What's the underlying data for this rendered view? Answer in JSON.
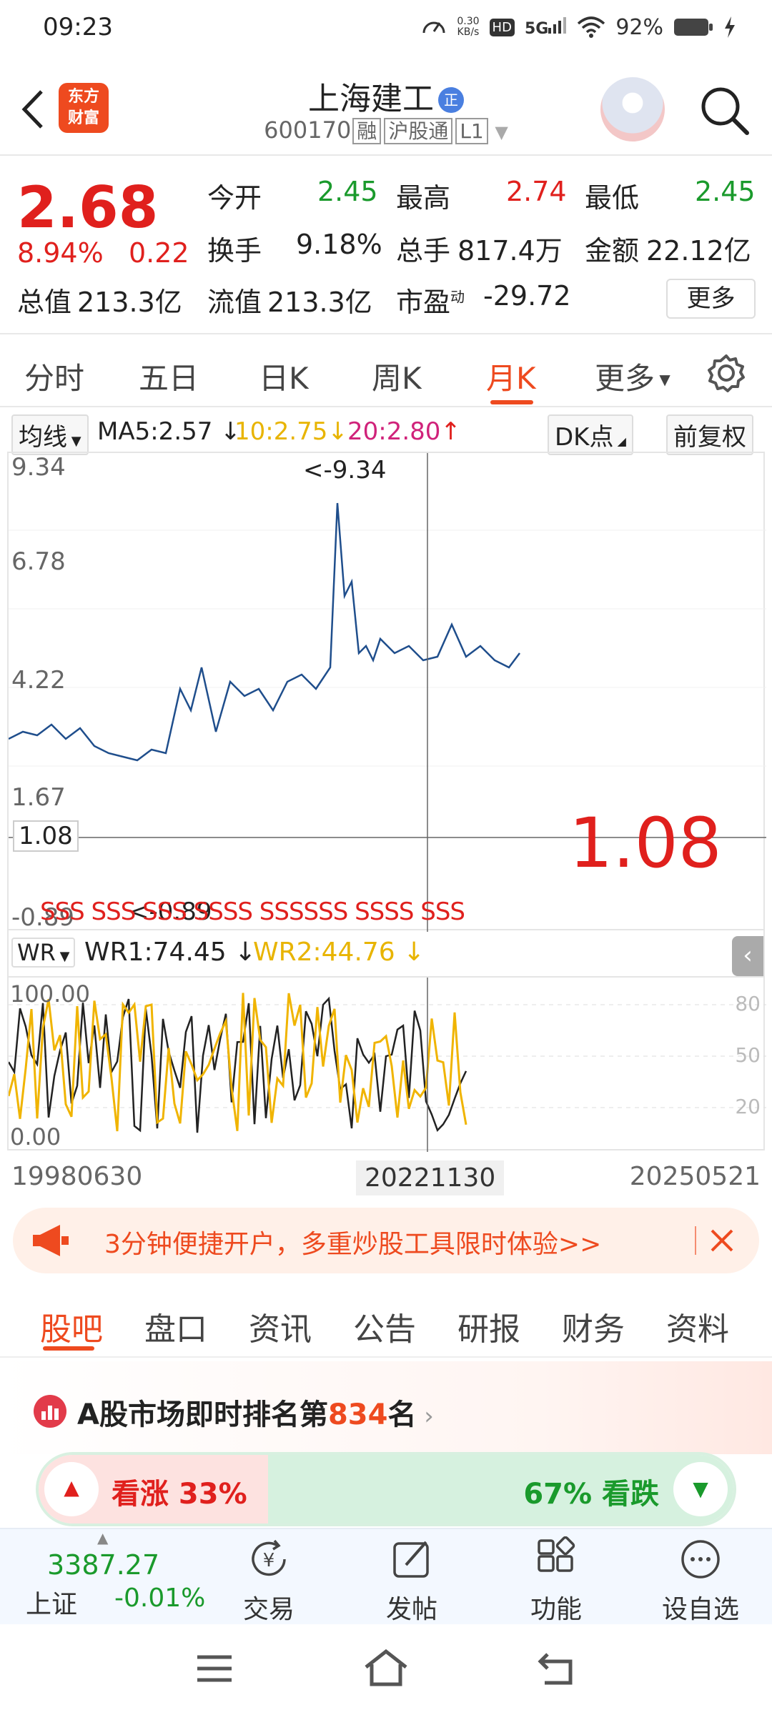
{
  "status_bar": {
    "time": "09:23",
    "net_speed_value": "0.30",
    "net_speed_unit": "KB/s",
    "hd": "HD",
    "signal": "5G",
    "battery": "92%"
  },
  "header": {
    "logo_line1": "东方",
    "logo_line2": "财富",
    "title": "上海建工",
    "title_badge": "正",
    "code": "600170",
    "badge_rong": "融",
    "badge_hgt": "沪股通",
    "badge_level": "L1"
  },
  "quote": {
    "price": "2.68",
    "change_pct": "8.94%",
    "change_amt": "0.22",
    "open_label": "今开",
    "open": "2.45",
    "high_label": "最高",
    "high": "2.74",
    "low_label": "最低",
    "low": "2.45",
    "turnover_label": "换手",
    "turnover": "9.18%",
    "volume_label": "总手",
    "volume": "817.4万",
    "amount_label": "金额",
    "amount": "22.12亿",
    "mktcap_label": "总值",
    "mktcap": "213.3亿",
    "float_label": "流值",
    "float": "213.3亿",
    "pe_label": "市盈",
    "pe_sup": "动",
    "pe": "-29.72",
    "more": "更多"
  },
  "tabs": [
    "分时",
    "五日",
    "日K",
    "周K",
    "月K",
    "更多"
  ],
  "ma_bar": {
    "selector": "均线",
    "ma5": "MA5:2.57",
    "ma10": "10:2.75",
    "ma20": "20:2.80",
    "dk": "DK点",
    "adjust": "前复权"
  },
  "chart": {
    "y_labels": [
      "9.34",
      "6.78",
      "4.22",
      "1.67",
      "-0.89"
    ],
    "max_note": "<-9.34",
    "min_note": "<-0.89",
    "crosshair_value": "1.08",
    "big_value": "1.08",
    "signal_text": "SSS SSS SSS SSSS SSSSSS SSSS SSS",
    "colors": {
      "price_line": "#1f4e8c",
      "up": "#e0201d",
      "down": "#1a9a2c",
      "accent": "#ee4a1f"
    }
  },
  "wr_bar": {
    "selector": "WR",
    "wr1": "WR1:74.45",
    "wr2": "WR2:44.76"
  },
  "wr_chart": {
    "left_labels": [
      "100.00",
      "0.00"
    ],
    "right_labels": [
      "80",
      "50",
      "20"
    ]
  },
  "dates": {
    "start": "19980630",
    "cursor": "20221130",
    "end": "20250521"
  },
  "banner": {
    "text": "3分钟便捷开户，多重炒股工具限时体验>>"
  },
  "sub_tabs": [
    "股吧",
    "盘口",
    "资讯",
    "公告",
    "研报",
    "财务",
    "资料"
  ],
  "rank": {
    "prefix": "A股市场即时排名第",
    "number": "834",
    "suffix": "名"
  },
  "vote": {
    "up": "看涨 33%",
    "down": "67% 看跌",
    "up_fraction": 0.33
  },
  "bottom_nav": {
    "index_value": "3387.27",
    "index_name": "上证",
    "index_change": "-0.01%",
    "items": [
      "交易",
      "发帖",
      "功能",
      "设自选"
    ]
  }
}
